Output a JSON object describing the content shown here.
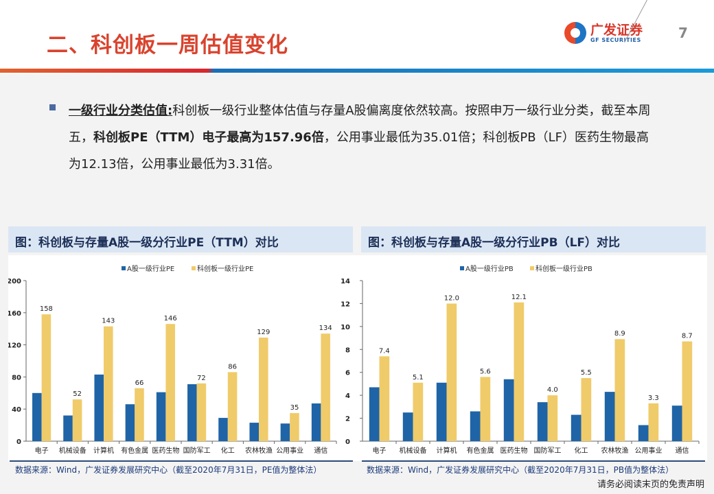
{
  "header": {
    "title": "二、科创板一周估值变化",
    "logo_cn": "广发证券",
    "logo_en": "GF SECURITIES",
    "page_number": "7"
  },
  "body": {
    "lead": "一级行业分类估值:",
    "text1": "科创板一级行业整体估值与存量A股偏离度依然较高。按照申万一级行业分类，截至本周五，",
    "bold1": "科创板PE（TTM）电子最高为157.96倍",
    "text2": "，公用事业最低为35.01倍；科创板PB（LF）医药生物最高为12.13倍，公用事业最低为3.31倍。"
  },
  "colors": {
    "a_share": "#1f64a6",
    "star": "#f0cb6a",
    "title_red": "#d9432e"
  },
  "chart_data": [
    {
      "type": "bar",
      "title": "图：科创板与存量A股一级分行业PE（TTM）对比",
      "source": "数据来源：Wind，广发证券发展研究中心（截至2020年7月31日，PE值为整体法）",
      "categories": [
        "电子",
        "机械设备",
        "计算机",
        "有色金属",
        "医药生物",
        "国防军工",
        "化工",
        "农林牧渔",
        "公用事业",
        "通信"
      ],
      "series": [
        {
          "name": "A股一级行业PE",
          "values": [
            60,
            32,
            83,
            46,
            61,
            71,
            29,
            23,
            22,
            47
          ]
        },
        {
          "name": "科创板一级行业PE",
          "values": [
            158,
            52,
            143,
            66,
            146,
            72,
            86,
            129,
            35,
            134
          ],
          "labels": [
            "158",
            "52",
            "143",
            "66",
            "146",
            "72",
            "86",
            "129",
            "35",
            "134"
          ]
        }
      ],
      "ylim": [
        0,
        200
      ],
      "yticks": [
        0,
        40,
        80,
        120,
        160,
        200
      ],
      "legend": "top",
      "grid": false
    },
    {
      "type": "bar",
      "title": "图：科创板与存量A股一级分行业PB（LF）对比",
      "source": "数据来源：Wind，广发证券发展研究中心（截至2020年7月31日，PB值为整体法）",
      "categories": [
        "电子",
        "机械设备",
        "计算机",
        "有色金属",
        "医药生物",
        "国防军工",
        "化工",
        "农林牧渔",
        "公用事业",
        "通信"
      ],
      "series": [
        {
          "name": "A股一级行业PB",
          "values": [
            4.7,
            2.5,
            5.1,
            2.6,
            5.4,
            3.4,
            2.3,
            4.3,
            1.4,
            3.1
          ]
        },
        {
          "name": "科创板一级行业PB",
          "values": [
            7.4,
            5.1,
            12.0,
            5.6,
            12.1,
            4.0,
            5.5,
            8.9,
            3.3,
            8.7
          ],
          "labels": [
            "7.4",
            "5.1",
            "12.0",
            "5.6",
            "12.1",
            "4.0",
            "5.5",
            "8.9",
            "3.3",
            "8.7"
          ]
        }
      ],
      "ylim": [
        0,
        14
      ],
      "yticks": [
        0,
        2,
        4,
        6,
        8,
        10,
        12,
        14
      ],
      "legend": "top",
      "grid": false
    }
  ],
  "disclaimer": "请务必阅读末页的免责声明"
}
